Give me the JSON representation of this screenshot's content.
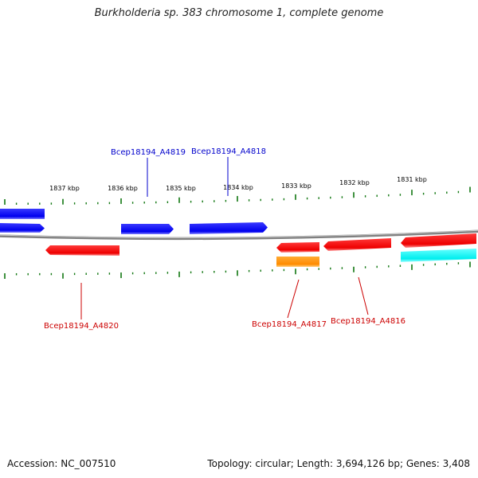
{
  "title": "Burkholderia sp. 383 chromosome 1, complete genome",
  "footer": {
    "accession": "Accession: NC_007510",
    "topology": "Topology: circular; Length: 3,694,126 bp; Genes: 3,408"
  },
  "colors": {
    "blue": "#0000ee",
    "red": "#ee0000",
    "orange": "#ff8c00",
    "cyan": "#00eeee",
    "tick": "#117711",
    "backbone": "#808080",
    "blue_label": "#0000cc",
    "red_label": "#cc0000"
  },
  "scale_labels": [
    "1837 kbp",
    "1836 kbp",
    "1835 kbp",
    "1834 kbp",
    "1833 kbp",
    "1832 kbp",
    "1831 kbp"
  ],
  "gene_labels": [
    {
      "name": "Bcep18194_A4819",
      "strand": "forward"
    },
    {
      "name": "Bcep18194_A4818",
      "strand": "forward"
    },
    {
      "name": "Bcep18194_A4820",
      "strand": "reverse"
    },
    {
      "name": "Bcep18194_A4817",
      "strand": "reverse"
    },
    {
      "name": "Bcep18194_A4816",
      "strand": "reverse"
    }
  ]
}
